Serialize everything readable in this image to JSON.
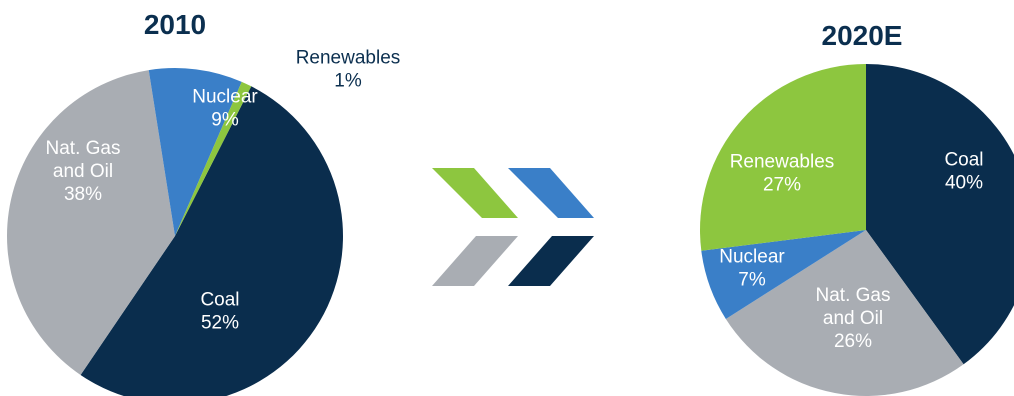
{
  "colors": {
    "coal": "#0a2d4d",
    "gas": "#a9adb3",
    "nuclear": "#3a7fc8",
    "renewables": "#8dc63f",
    "title": "#0b2f4f"
  },
  "arrow_icon": "double-chevron-right-icon",
  "chart_data": [
    {
      "type": "pie",
      "title": "2010",
      "slices": [
        {
          "key": "coal",
          "label_lines": [
            "Coal",
            "52%"
          ],
          "value": 52
        },
        {
          "key": "gas",
          "label_lines": [
            "Nat. Gas",
            "and Oil",
            "38%"
          ],
          "value": 38
        },
        {
          "key": "nuclear",
          "label_lines": [
            "Nuclear",
            "9%"
          ],
          "value": 9
        },
        {
          "key": "renewables",
          "label_lines": [
            "Renewables",
            "1%"
          ],
          "value": 1
        }
      ]
    },
    {
      "type": "pie",
      "title": "2020E",
      "slices": [
        {
          "key": "coal",
          "label_lines": [
            "Coal",
            "40%"
          ],
          "value": 40
        },
        {
          "key": "gas",
          "label_lines": [
            "Nat. Gas",
            "and Oil",
            "26%"
          ],
          "value": 26
        },
        {
          "key": "nuclear",
          "label_lines": [
            "Nuclear",
            "7%"
          ],
          "value": 7
        },
        {
          "key": "renewables",
          "label_lines": [
            "Renewables",
            "27%"
          ],
          "value": 27
        }
      ]
    }
  ]
}
